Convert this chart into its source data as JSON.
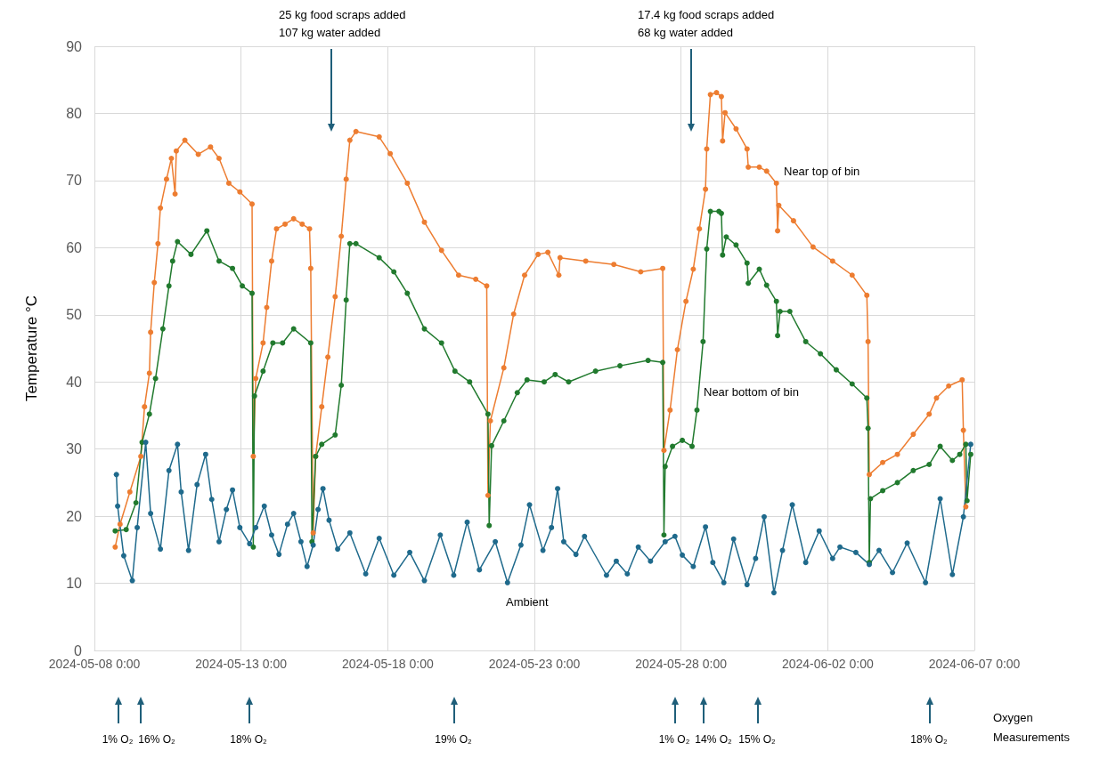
{
  "chart_data": {
    "type": "line",
    "ylabel": "Temperature °C",
    "xlim": [
      "2024-05-08",
      "2024-06-07"
    ],
    "xticks": [
      {
        "value": "2024-05-08",
        "label": "2024-05-08 0:00"
      },
      {
        "value": "2024-05-13",
        "label": "2024-05-13 0:00"
      },
      {
        "value": "2024-05-18",
        "label": "2024-05-18 0:00"
      },
      {
        "value": "2024-05-23",
        "label": "2024-05-23 0:00"
      },
      {
        "value": "2024-05-28",
        "label": "2024-05-28 0:00"
      },
      {
        "value": "2024-06-02",
        "label": "2024-06-02 0:00"
      },
      {
        "value": "2024-06-07",
        "label": "2024-06-07 0:00"
      }
    ],
    "ylim": [
      0,
      90
    ],
    "yticks": [
      0,
      10,
      20,
      30,
      40,
      50,
      60,
      70,
      80,
      90
    ],
    "grid": true,
    "legend": false,
    "marker": "circle",
    "line_style": "solid",
    "series": [
      {
        "name": "Near top of bin",
        "color": "#ed7d31",
        "x": [
          "2024-05-08T17:00",
          "2024-05-08T21:00",
          "2024-05-09T05:00",
          "2024-05-09T14:00",
          "2024-05-09T17:00",
          "2024-05-09T21:00",
          "2024-05-09T22:00",
          "2024-05-10T01:00",
          "2024-05-10T04:00",
          "2024-05-10T06:00",
          "2024-05-10T11:00",
          "2024-05-10T15:00",
          "2024-05-10T18:00",
          "2024-05-10T19:00",
          "2024-05-11T02:00",
          "2024-05-11T13:00",
          "2024-05-11T23:00",
          "2024-05-12T06:00",
          "2024-05-12T14:00",
          "2024-05-12T23:00",
          "2024-05-13T09:00",
          "2024-05-13T10:00",
          "2024-05-13T12:00",
          "2024-05-13T18:00",
          "2024-05-13T21:00",
          "2024-05-14T01:00",
          "2024-05-14T05:00",
          "2024-05-14T12:00",
          "2024-05-14T19:00",
          "2024-05-15T02:00",
          "2024-05-15T08:00",
          "2024-05-15T09:00",
          "2024-05-15T11:00",
          "2024-05-15T13:00",
          "2024-05-15T18:00",
          "2024-05-15T23:00",
          "2024-05-16T05:00",
          "2024-05-16T10:00",
          "2024-05-16T14:00",
          "2024-05-16T17:00",
          "2024-05-16T22:00",
          "2024-05-17T17:00",
          "2024-05-18T02:00",
          "2024-05-18T16:00",
          "2024-05-19T06:00",
          "2024-05-19T20:00",
          "2024-05-20T10:00",
          "2024-05-21T00:00",
          "2024-05-21T09:00",
          "2024-05-21T10:00",
          "2024-05-21T12:00",
          "2024-05-21T23:00",
          "2024-05-22T07:00",
          "2024-05-22T16:00",
          "2024-05-23T03:00",
          "2024-05-23T11:00",
          "2024-05-23T20:00",
          "2024-05-23T21:00",
          "2024-05-24T18:00",
          "2024-05-25T17:00",
          "2024-05-26T15:00",
          "2024-05-27T09:00",
          "2024-05-27T10:00",
          "2024-05-27T15:00",
          "2024-05-27T21:00",
          "2024-05-28T04:00",
          "2024-05-28T10:00",
          "2024-05-28T15:00",
          "2024-05-28T20:00",
          "2024-05-28T21:00",
          "2024-05-29T00:00",
          "2024-05-29T05:00",
          "2024-05-29T09:00",
          "2024-05-29T10:00",
          "2024-05-29T12:00",
          "2024-05-29T21:00",
          "2024-05-30T06:00",
          "2024-05-30T07:00",
          "2024-05-30T16:00",
          "2024-05-30T22:00",
          "2024-05-31T06:00",
          "2024-05-31T07:00",
          "2024-05-31T08:00",
          "2024-05-31T20:00",
          "2024-06-01T12:00",
          "2024-06-02T04:00",
          "2024-06-02T20:00",
          "2024-06-03T08:00",
          "2024-06-03T09:00",
          "2024-06-03T10:00",
          "2024-06-03T21:00",
          "2024-06-04T09:00",
          "2024-06-04T22:00",
          "2024-06-05T11:00",
          "2024-06-05T17:00",
          "2024-06-06T03:00",
          "2024-06-06T14:00",
          "2024-06-06T15:00",
          "2024-06-06T17:00"
        ],
        "values": [
          15.4,
          18.8,
          23.6,
          28.9,
          36.3,
          41.3,
          47.4,
          54.8,
          60.6,
          65.9,
          70.2,
          73.3,
          68.0,
          74.4,
          76.0,
          73.9,
          75.0,
          73.3,
          69.6,
          68.3,
          66.5,
          28.9,
          40.5,
          45.8,
          51.1,
          58.0,
          62.8,
          63.5,
          64.3,
          63.5,
          62.8,
          56.9,
          17.5,
          28.9,
          36.3,
          43.7,
          52.7,
          61.7,
          70.2,
          76.0,
          77.3,
          76.5,
          74.0,
          69.6,
          63.8,
          59.6,
          55.9,
          55.3,
          54.3,
          23.1,
          34.2,
          42.1,
          50.1,
          55.9,
          59.0,
          59.3,
          55.9,
          58.5,
          58.0,
          57.5,
          56.4,
          56.9,
          29.8,
          35.8,
          44.8,
          52.0,
          56.8,
          62.8,
          68.7,
          74.7,
          82.8,
          83.1,
          82.5,
          75.9,
          80.1,
          77.7,
          74.7,
          72.0,
          72.0,
          71.4,
          69.6,
          62.5,
          66.3,
          64.0,
          60.1,
          58.0,
          55.9,
          52.9,
          46.0,
          26.2,
          28.0,
          29.2,
          32.2,
          35.2,
          37.6,
          39.4,
          40.3,
          32.8,
          21.4
        ]
      },
      {
        "name": "Near bottom of bin",
        "color": "#217a2e",
        "x": [
          "2024-05-08T17:00",
          "2024-05-09T02:00",
          "2024-05-09T10:00",
          "2024-05-09T15:00",
          "2024-05-09T21:00",
          "2024-05-10T02:00",
          "2024-05-10T08:00",
          "2024-05-10T13:00",
          "2024-05-10T16:00",
          "2024-05-10T20:00",
          "2024-05-11T07:00",
          "2024-05-11T20:00",
          "2024-05-12T06:00",
          "2024-05-12T17:00",
          "2024-05-13T01:00",
          "2024-05-13T09:00",
          "2024-05-13T10:00",
          "2024-05-13T11:00",
          "2024-05-13T18:00",
          "2024-05-14T02:00",
          "2024-05-14T10:00",
          "2024-05-14T19:00",
          "2024-05-15T09:00",
          "2024-05-15T10:00",
          "2024-05-15T13:00",
          "2024-05-15T18:00",
          "2024-05-16T05:00",
          "2024-05-16T10:00",
          "2024-05-16T14:00",
          "2024-05-16T17:00",
          "2024-05-16T22:00",
          "2024-05-17T17:00",
          "2024-05-18T05:00",
          "2024-05-18T16:00",
          "2024-05-19T06:00",
          "2024-05-19T20:00",
          "2024-05-20T07:00",
          "2024-05-20T19:00",
          "2024-05-21T10:00",
          "2024-05-21T11:00",
          "2024-05-21T13:00",
          "2024-05-21T23:00",
          "2024-05-22T10:00",
          "2024-05-22T18:00",
          "2024-05-23T08:00",
          "2024-05-23T17:00",
          "2024-05-24T04:00",
          "2024-05-25T02:00",
          "2024-05-25T22:00",
          "2024-05-26T21:00",
          "2024-05-27T09:00",
          "2024-05-27T10:00",
          "2024-05-27T11:00",
          "2024-05-27T17:00",
          "2024-05-28T01:00",
          "2024-05-28T09:00",
          "2024-05-28T13:00",
          "2024-05-28T18:00",
          "2024-05-28T21:00",
          "2024-05-29T00:00",
          "2024-05-29T07:00",
          "2024-05-29T09:00",
          "2024-05-29T10:00",
          "2024-05-29T13:00",
          "2024-05-29T21:00",
          "2024-05-30T06:00",
          "2024-05-30T07:00",
          "2024-05-30T16:00",
          "2024-05-30T22:00",
          "2024-05-31T06:00",
          "2024-05-31T07:00",
          "2024-05-31T09:00",
          "2024-05-31T17:00",
          "2024-06-01T06:00",
          "2024-06-01T18:00",
          "2024-06-02T07:00",
          "2024-06-02T20:00",
          "2024-06-03T08:00",
          "2024-06-03T09:00",
          "2024-06-03T10:00",
          "2024-06-03T11:00",
          "2024-06-03T21:00",
          "2024-06-04T09:00",
          "2024-06-04T22:00",
          "2024-06-05T11:00",
          "2024-06-05T20:00",
          "2024-06-06T06:00",
          "2024-06-06T12:00",
          "2024-06-06T17:00",
          "2024-06-06T18:00",
          "2024-06-06T21:00"
        ],
        "values": [
          17.8,
          18.0,
          22.0,
          31.0,
          35.2,
          40.5,
          47.9,
          54.3,
          58.0,
          60.9,
          59.0,
          62.5,
          58.0,
          56.9,
          54.3,
          53.2,
          15.4,
          37.9,
          41.6,
          45.8,
          45.8,
          47.9,
          45.8,
          16.2,
          28.9,
          30.7,
          32.1,
          39.5,
          52.2,
          60.6,
          60.6,
          58.5,
          56.4,
          53.2,
          47.9,
          45.8,
          41.6,
          40.0,
          35.2,
          18.6,
          30.5,
          34.2,
          38.4,
          40.3,
          40.0,
          41.1,
          40.0,
          41.6,
          42.4,
          43.2,
          42.9,
          17.2,
          27.4,
          30.4,
          31.3,
          30.4,
          35.8,
          46.0,
          59.8,
          65.4,
          65.4,
          65.1,
          58.9,
          61.6,
          60.4,
          57.7,
          54.7,
          56.8,
          54.4,
          52.0,
          46.9,
          50.5,
          50.5,
          46.0,
          44.2,
          41.8,
          39.7,
          37.6,
          33.1,
          13.1,
          22.6,
          23.8,
          25.0,
          26.8,
          27.7,
          30.4,
          28.3,
          29.2,
          30.7,
          22.3,
          29.2
        ]
      },
      {
        "name": "Ambient",
        "color": "#1f6a8c",
        "x": [
          "2024-05-08T18:00",
          "2024-05-08T19:00",
          "2024-05-09T00:00",
          "2024-05-09T07:00",
          "2024-05-09T11:00",
          "2024-05-09T18:00",
          "2024-05-09T22:00",
          "2024-05-10T06:00",
          "2024-05-10T13:00",
          "2024-05-10T20:00",
          "2024-05-10T23:00",
          "2024-05-11T05:00",
          "2024-05-11T12:00",
          "2024-05-11T19:00",
          "2024-05-12T00:00",
          "2024-05-12T06:00",
          "2024-05-12T12:00",
          "2024-05-12T17:00",
          "2024-05-12T23:00",
          "2024-05-13T07:00",
          "2024-05-13T12:00",
          "2024-05-13T19:00",
          "2024-05-14T01:00",
          "2024-05-14T07:00",
          "2024-05-14T14:00",
          "2024-05-14T19:00",
          "2024-05-15T01:00",
          "2024-05-15T06:00",
          "2024-05-15T11:00",
          "2024-05-15T15:00",
          "2024-05-15T19:00",
          "2024-05-16T00:00",
          "2024-05-16T07:00",
          "2024-05-16T17:00",
          "2024-05-17T06:00",
          "2024-05-17T17:00",
          "2024-05-18T05:00",
          "2024-05-18T18:00",
          "2024-05-19T06:00",
          "2024-05-19T19:00",
          "2024-05-20T06:00",
          "2024-05-20T17:00",
          "2024-05-21T03:00",
          "2024-05-21T16:00",
          "2024-05-22T02:00",
          "2024-05-22T13:00",
          "2024-05-22T20:00",
          "2024-05-23T07:00",
          "2024-05-23T14:00",
          "2024-05-23T19:00",
          "2024-05-24T00:00",
          "2024-05-24T10:00",
          "2024-05-24T17:00",
          "2024-05-25T11:00",
          "2024-05-25T19:00",
          "2024-05-26T04:00",
          "2024-05-26T13:00",
          "2024-05-26T23:00",
          "2024-05-27T11:00",
          "2024-05-27T19:00",
          "2024-05-28T01:00",
          "2024-05-28T10:00",
          "2024-05-28T20:00",
          "2024-05-29T02:00",
          "2024-05-29T11:00",
          "2024-05-29T19:00",
          "2024-05-30T06:00",
          "2024-05-30T13:00",
          "2024-05-30T20:00",
          "2024-05-31T04:00",
          "2024-05-31T11:00",
          "2024-05-31T19:00",
          "2024-06-01T06:00",
          "2024-06-01T17:00",
          "2024-06-02T04:00",
          "2024-06-02T10:00",
          "2024-06-02T23:00",
          "2024-06-03T10:00",
          "2024-06-03T18:00",
          "2024-06-04T05:00",
          "2024-06-04T17:00",
          "2024-06-05T08:00",
          "2024-06-05T20:00",
          "2024-06-06T06:00",
          "2024-06-06T15:00",
          "2024-06-06T21:00"
        ],
        "values": [
          26.2,
          21.5,
          14.1,
          10.4,
          18.3,
          31.0,
          20.4,
          15.1,
          26.8,
          30.7,
          23.6,
          14.9,
          24.7,
          29.2,
          22.5,
          16.2,
          21.0,
          23.9,
          18.3,
          15.9,
          18.3,
          21.5,
          17.2,
          14.3,
          18.8,
          20.4,
          16.2,
          12.5,
          15.7,
          21.0,
          24.1,
          19.4,
          15.1,
          17.5,
          11.4,
          16.7,
          11.2,
          14.6,
          10.4,
          17.2,
          11.2,
          19.1,
          12.0,
          16.2,
          10.1,
          15.7,
          21.7,
          14.9,
          18.3,
          24.1,
          16.2,
          14.3,
          17.0,
          11.2,
          13.3,
          11.4,
          15.4,
          13.3,
          16.2,
          17.0,
          14.2,
          12.5,
          18.4,
          13.1,
          10.1,
          16.6,
          9.8,
          13.7,
          19.9,
          8.6,
          14.9,
          21.7,
          13.1,
          17.8,
          13.7,
          15.4,
          14.6,
          12.8,
          14.9,
          11.6,
          16.0,
          10.1,
          22.6,
          11.3,
          19.9,
          30.7
        ]
      }
    ],
    "annotations": [
      "25 kg food scraps added\n107 kg water added",
      "17.4 kg food scraps added\n68 kg water added",
      "1% O₂",
      "16% O₂",
      "18% O₂",
      "19% O₂",
      "1% O₂",
      "14% O₂",
      "15% O₂",
      "18% O₂",
      "Oxygen Measurements"
    ]
  }
}
